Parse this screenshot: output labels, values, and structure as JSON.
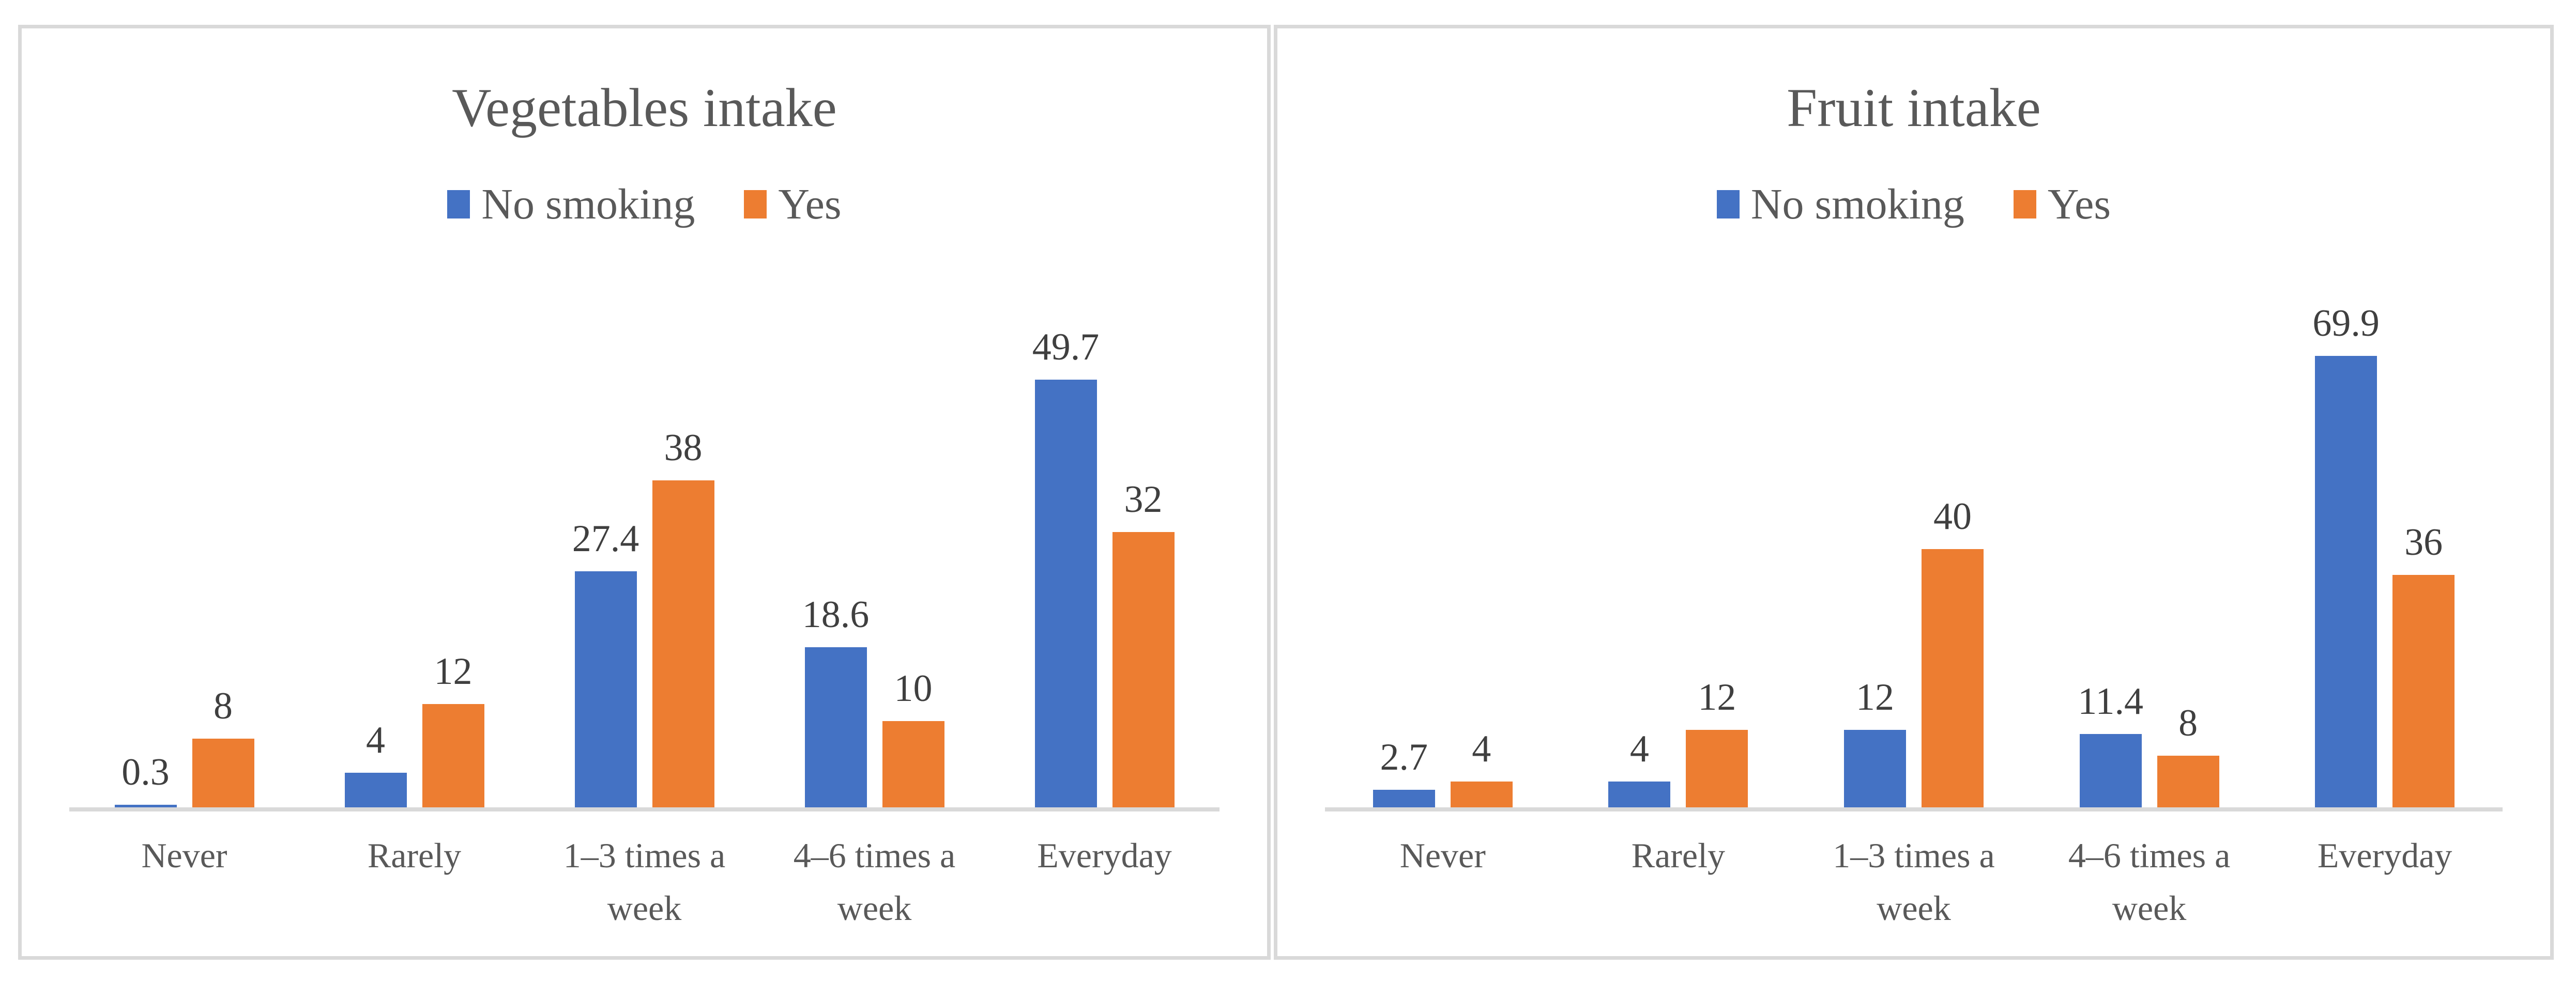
{
  "figure": {
    "background": "#FFFFFF",
    "panel_border_color": "#D9D9D9",
    "axis_line_color": "#D9D9D9",
    "title_color": "#595959",
    "axis_label_color": "#595959",
    "data_label_color": "#3F3F3F"
  },
  "chart_data": [
    {
      "type": "bar",
      "title": "Vegetables intake",
      "legend_position": "top",
      "grid": false,
      "xlabel": "",
      "ylabel": "",
      "categories": [
        "Never",
        "Rarely",
        "1–3 times a week",
        "4–6 times a week",
        "Everyday"
      ],
      "series": [
        {
          "name": "No smoking",
          "color": "#4472C4",
          "values": [
            0.3,
            4,
            27.4,
            18.6,
            49.7
          ]
        },
        {
          "name": "Yes",
          "color": "#ED7D31",
          "values": [
            8,
            12,
            38,
            10,
            32
          ]
        }
      ],
      "ylim": [
        0,
        54
      ]
    },
    {
      "type": "bar",
      "title": "Fruit intake",
      "legend_position": "top",
      "grid": false,
      "xlabel": "",
      "ylabel": "",
      "categories": [
        "Never",
        "Rarely",
        "1–3 times a week",
        "4–6 times a week",
        "Everyday"
      ],
      "series": [
        {
          "name": "No smoking",
          "color": "#4472C4",
          "values": [
            2.7,
            4,
            12,
            11.4,
            69.9
          ]
        },
        {
          "name": "Yes",
          "color": "#ED7D31",
          "values": [
            4,
            12,
            40,
            8,
            36
          ]
        }
      ],
      "ylim": [
        0,
        72
      ]
    }
  ]
}
